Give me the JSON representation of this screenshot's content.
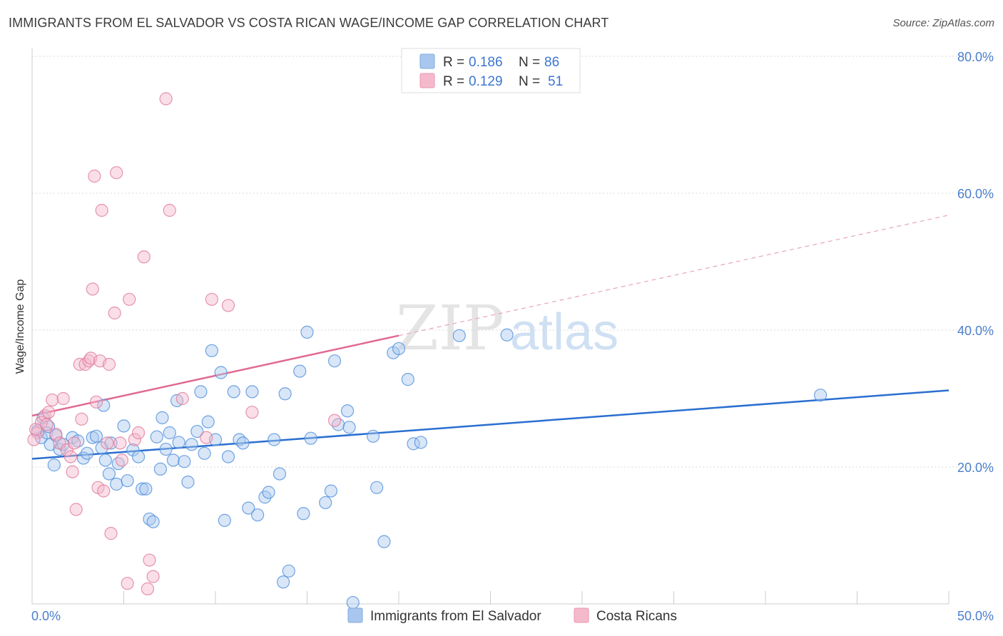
{
  "title": "IMMIGRANTS FROM EL SALVADOR VS COSTA RICAN WAGE/INCOME GAP CORRELATION CHART",
  "source": "Source: ZipAtlas.com",
  "watermark": {
    "zip": "ZIP",
    "atlas": "atlas"
  },
  "legend_top": [
    {
      "r_label": "R =",
      "r_value": "0.186",
      "n_label": "N =",
      "n_value": "86",
      "color": "#a9c7ee"
    },
    {
      "r_label": "R =",
      "r_value": "0.129",
      "n_label": "N =",
      "n_value": "51",
      "color": "#f5b9cc"
    }
  ],
  "legend_bottom": [
    {
      "label": "Immigrants from El Salvador",
      "color": "#a9c7ee"
    },
    {
      "label": "Costa Ricans",
      "color": "#f5b9cc"
    }
  ],
  "chart_data": {
    "type": "scatter",
    "title": "IMMIGRANTS FROM EL SALVADOR VS COSTA RICAN WAGE/INCOME GAP CORRELATION CHART",
    "ylabel": "Wage/Income Gap",
    "xlabel": "",
    "xlim": [
      0,
      50
    ],
    "ylim": [
      0,
      80
    ],
    "x_tick_labels": [
      {
        "value": 0,
        "label": "0.0%"
      },
      {
        "value": 50,
        "label": "50.0%"
      }
    ],
    "y_tick_labels": [
      {
        "value": 20,
        "label": "20.0%"
      },
      {
        "value": 40,
        "label": "40.0%"
      },
      {
        "value": 60,
        "label": "60.0%"
      },
      {
        "value": 80,
        "label": "80.0%"
      }
    ],
    "grid": true,
    "series": [
      {
        "name": "Immigrants from El Salvador",
        "color": "#4f8fdc",
        "fill": "#a9c7ee",
        "trend": {
          "x": [
            0,
            50
          ],
          "y": [
            21.2,
            31.2
          ],
          "style": "solid",
          "color": "#2a6fd0"
        },
        "points": [
          [
            0.3,
            25.3
          ],
          [
            0.5,
            24.3
          ],
          [
            0.8,
            25.0
          ],
          [
            1.0,
            23.3
          ],
          [
            1.2,
            20.3
          ],
          [
            1.5,
            22.6
          ],
          [
            1.7,
            23.3
          ],
          [
            2.2,
            24.3
          ],
          [
            2.8,
            21.3
          ],
          [
            3.0,
            22.0
          ],
          [
            3.3,
            24.3
          ],
          [
            3.5,
            24.5
          ],
          [
            3.8,
            22.8
          ],
          [
            4.0,
            21.0
          ],
          [
            4.2,
            19.0
          ],
          [
            4.3,
            23.5
          ],
          [
            4.6,
            17.5
          ],
          [
            4.7,
            20.5
          ],
          [
            5.0,
            26.0
          ],
          [
            5.2,
            18.0
          ],
          [
            5.5,
            22.5
          ],
          [
            5.8,
            21.5
          ],
          [
            6.0,
            16.8
          ],
          [
            6.2,
            16.8
          ],
          [
            6.4,
            12.4
          ],
          [
            6.6,
            12.0
          ],
          [
            6.8,
            24.4
          ],
          [
            7.0,
            19.7
          ],
          [
            7.1,
            27.2
          ],
          [
            7.3,
            22.6
          ],
          [
            7.5,
            25.0
          ],
          [
            7.7,
            21.0
          ],
          [
            7.9,
            29.7
          ],
          [
            8.0,
            23.6
          ],
          [
            8.3,
            20.8
          ],
          [
            8.5,
            17.8
          ],
          [
            8.7,
            23.3
          ],
          [
            9.0,
            25.2
          ],
          [
            9.2,
            31.0
          ],
          [
            9.4,
            22.0
          ],
          [
            9.6,
            26.6
          ],
          [
            9.8,
            37.0
          ],
          [
            10.0,
            24.0
          ],
          [
            10.3,
            33.8
          ],
          [
            10.5,
            12.2
          ],
          [
            10.7,
            21.5
          ],
          [
            11.0,
            31.0
          ],
          [
            11.3,
            24.0
          ],
          [
            11.5,
            23.5
          ],
          [
            11.8,
            14.0
          ],
          [
            12.0,
            31.0
          ],
          [
            12.3,
            13.0
          ],
          [
            12.7,
            15.6
          ],
          [
            12.9,
            16.3
          ],
          [
            13.2,
            24.0
          ],
          [
            13.5,
            19.0
          ],
          [
            13.8,
            30.7
          ],
          [
            14.0,
            4.8
          ],
          [
            13.7,
            3.2
          ],
          [
            14.6,
            34.0
          ],
          [
            14.8,
            13.2
          ],
          [
            15.0,
            39.7
          ],
          [
            15.2,
            24.2
          ],
          [
            16.0,
            14.8
          ],
          [
            16.3,
            16.5
          ],
          [
            16.5,
            35.5
          ],
          [
            16.7,
            26.2
          ],
          [
            17.2,
            28.2
          ],
          [
            17.5,
            0.2
          ],
          [
            17.3,
            25.8
          ],
          [
            18.6,
            24.5
          ],
          [
            18.8,
            17.0
          ],
          [
            19.2,
            9.1
          ],
          [
            19.7,
            36.7
          ],
          [
            20.0,
            37.3
          ],
          [
            20.5,
            32.8
          ],
          [
            20.8,
            23.4
          ],
          [
            21.2,
            23.6
          ],
          [
            23.3,
            39.2
          ],
          [
            25.9,
            39.3
          ],
          [
            43.0,
            30.5
          ],
          [
            0.6,
            27.2
          ],
          [
            0.9,
            25.9
          ],
          [
            1.3,
            24.6
          ],
          [
            2.5,
            23.8
          ],
          [
            3.9,
            29.0
          ]
        ]
      },
      {
        "name": "Costa Ricans",
        "color": "#e07a9b",
        "fill": "#f5b9cc",
        "trend": {
          "x": [
            0,
            20
          ],
          "y": [
            27.5,
            39.2
          ],
          "style": "solid",
          "color": "#e06a92",
          "ext": {
            "x": [
              20,
              50
            ],
            "y": [
              39.2,
              56.8
            ],
            "style": "dashed"
          }
        },
        "points": [
          [
            0.3,
            25.0
          ],
          [
            0.5,
            26.5
          ],
          [
            0.7,
            27.5
          ],
          [
            0.9,
            28.0
          ],
          [
            1.1,
            29.8
          ],
          [
            1.3,
            24.8
          ],
          [
            1.5,
            23.5
          ],
          [
            1.7,
            30.0
          ],
          [
            1.9,
            22.5
          ],
          [
            2.1,
            21.5
          ],
          [
            2.2,
            19.3
          ],
          [
            2.3,
            23.5
          ],
          [
            2.4,
            13.8
          ],
          [
            2.6,
            35.0
          ],
          [
            2.7,
            27.0
          ],
          [
            2.9,
            35.0
          ],
          [
            3.1,
            35.5
          ],
          [
            3.2,
            35.9
          ],
          [
            3.3,
            46.0
          ],
          [
            3.4,
            62.5
          ],
          [
            3.5,
            29.5
          ],
          [
            3.6,
            17.0
          ],
          [
            3.7,
            35.5
          ],
          [
            3.8,
            57.5
          ],
          [
            3.9,
            16.5
          ],
          [
            4.1,
            23.5
          ],
          [
            4.2,
            35.0
          ],
          [
            4.3,
            10.3
          ],
          [
            4.5,
            42.5
          ],
          [
            4.6,
            63.0
          ],
          [
            4.8,
            23.5
          ],
          [
            4.9,
            21.0
          ],
          [
            5.2,
            3.0
          ],
          [
            5.3,
            44.5
          ],
          [
            5.6,
            24.0
          ],
          [
            5.8,
            25.0
          ],
          [
            6.1,
            50.7
          ],
          [
            6.3,
            2.2
          ],
          [
            6.4,
            6.4
          ],
          [
            6.6,
            4.0
          ],
          [
            7.3,
            73.8
          ],
          [
            7.5,
            57.5
          ],
          [
            8.2,
            30.0
          ],
          [
            9.5,
            24.3
          ],
          [
            9.8,
            44.5
          ],
          [
            10.7,
            43.6
          ],
          [
            12.0,
            28.0
          ],
          [
            16.5,
            26.8
          ],
          [
            0.1,
            24.0
          ],
          [
            0.2,
            25.5
          ],
          [
            0.8,
            26.2
          ]
        ]
      }
    ]
  }
}
